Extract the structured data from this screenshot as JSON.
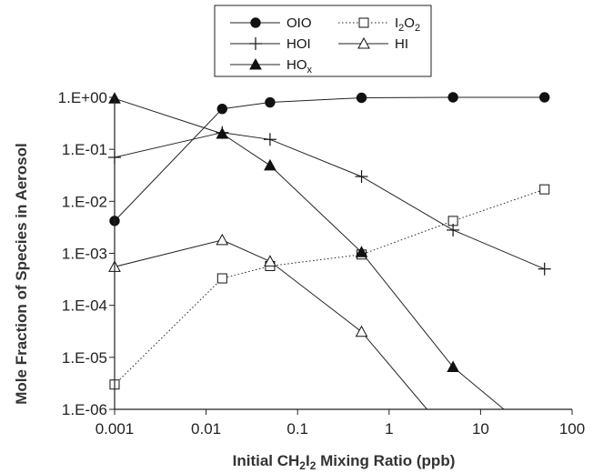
{
  "chart_data": {
    "type": "line",
    "xlabel_parts": [
      "Initial CH",
      "2",
      "I",
      "2",
      " Mixing Ratio (ppb)"
    ],
    "ylabel": "Mole Fraction of Species in Aerosol",
    "x_scale": "log",
    "y_scale": "log",
    "xlim": [
      0.001,
      100
    ],
    "ylim": [
      1e-06,
      1
    ],
    "x_ticks": [
      0.001,
      0.01,
      0.1,
      1,
      10,
      100
    ],
    "x_tick_labels": [
      "0.001",
      "0.01",
      "0.1",
      "1",
      "10",
      "100"
    ],
    "y_ticks": [
      1e-06,
      1e-05,
      0.0001,
      0.001,
      0.01,
      0.1,
      1
    ],
    "y_tick_labels": [
      "1.E-06",
      "1.E-05",
      "1.E-04",
      "1.E-03",
      "1.E-02",
      "1.E-01",
      "1.E+00"
    ],
    "grid": false,
    "legend_position": "top",
    "series": [
      {
        "name": "OIO",
        "label_parts": [
          "OIO"
        ],
        "marker": "filled-circle",
        "line_style": "solid",
        "x": [
          0.001,
          0.015,
          0.05,
          0.5,
          5,
          50
        ],
        "y": [
          0.0042,
          0.6,
          0.8,
          0.98,
          1.0,
          1.0
        ]
      },
      {
        "name": "I2O2",
        "label_parts": [
          "I",
          "2",
          "O",
          "2"
        ],
        "marker": "open-square",
        "line_style": "dotted",
        "x": [
          0.001,
          0.015,
          0.05,
          0.5,
          5,
          50
        ],
        "y": [
          3e-06,
          0.00033,
          0.00057,
          0.00095,
          0.0042,
          0.017
        ]
      },
      {
        "name": "HOI",
        "label_parts": [
          "HOI"
        ],
        "marker": "plus",
        "line_style": "solid",
        "x": [
          0.001,
          0.015,
          0.05,
          0.5,
          5,
          50
        ],
        "y": [
          0.07,
          0.21,
          0.155,
          0.03,
          0.0028,
          0.0005
        ]
      },
      {
        "name": "HI",
        "label_parts": [
          "HI"
        ],
        "marker": "open-triangle",
        "line_style": "solid",
        "x": [
          0.001,
          0.015,
          0.05,
          0.5,
          2.6
        ],
        "y": [
          0.00055,
          0.0018,
          0.0007,
          3.1e-05,
          1e-06
        ]
      },
      {
        "name": "HOx",
        "label_parts": [
          "HO",
          "x"
        ],
        "marker": "filled-triangle",
        "line_style": "solid",
        "x": [
          0.001,
          0.015,
          0.05,
          0.5,
          5,
          18
        ],
        "y": [
          0.95,
          0.2,
          0.049,
          0.00105,
          6.5e-06,
          1e-06
        ]
      }
    ]
  }
}
